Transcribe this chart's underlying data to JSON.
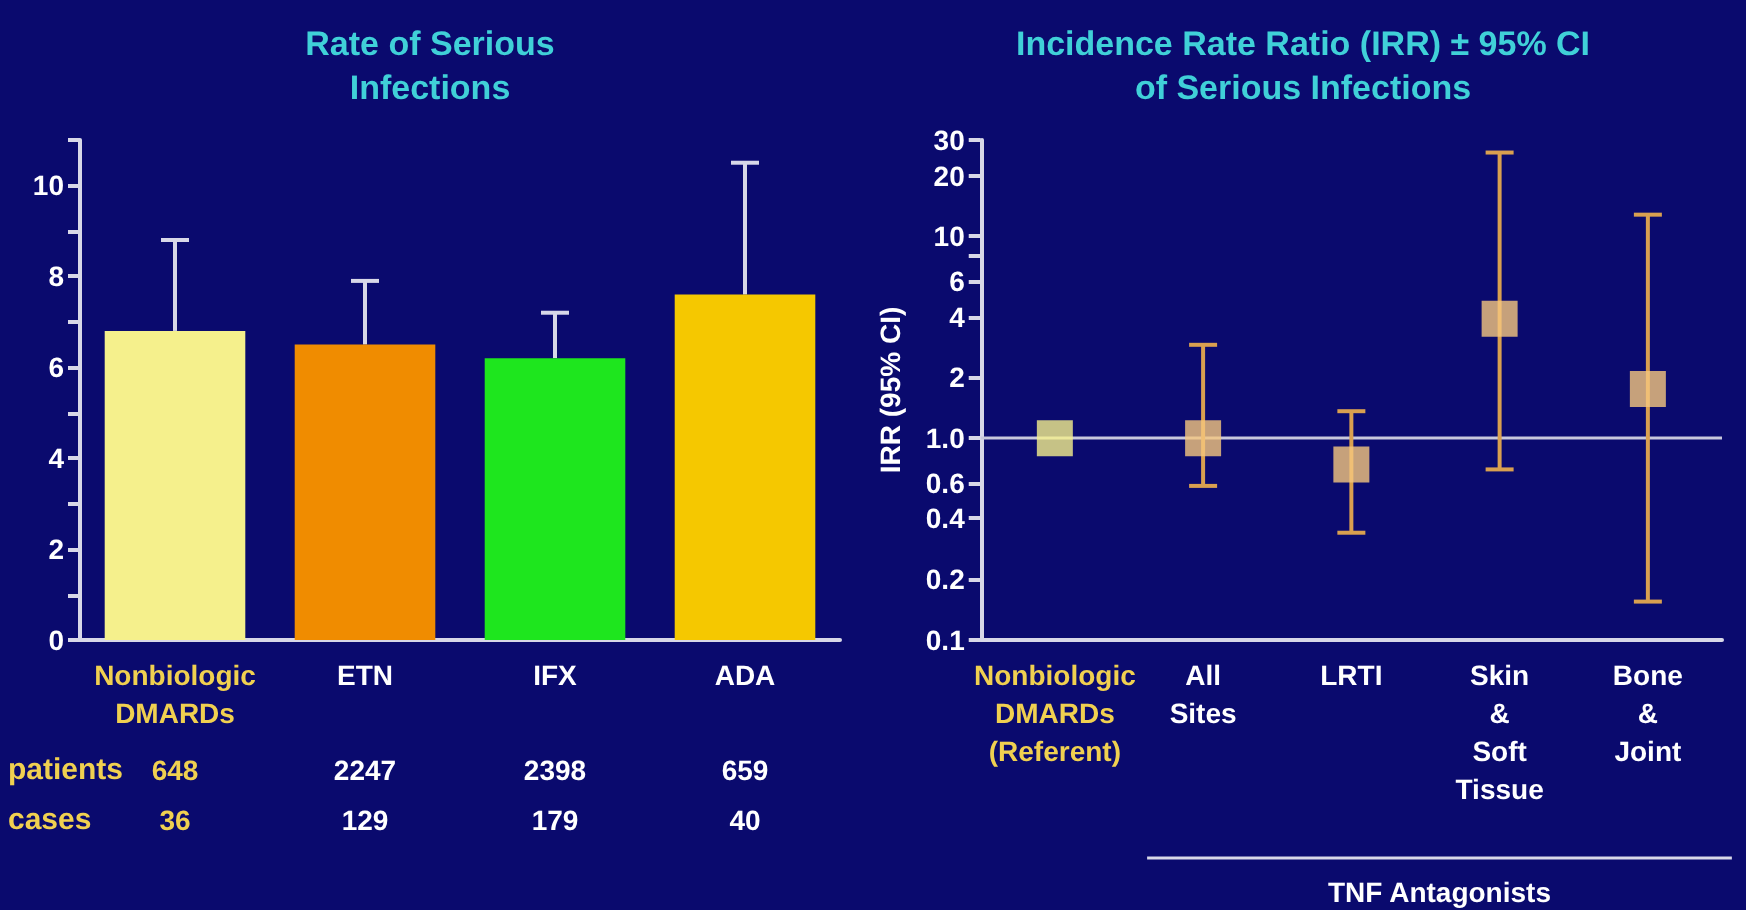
{
  "chart_data": [
    {
      "type": "bar",
      "title": "Rate of Serious\nInfections",
      "categories": [
        "Nonbiologic\nDMARDs",
        "ETN",
        "IFX",
        "ADA"
      ],
      "values": [
        6.8,
        6.5,
        6.2,
        7.6
      ],
      "colors": [
        "#f5f08c",
        "#f08c00",
        "#1ee61e",
        "#f5c800"
      ],
      "errors": [
        [
          6.8,
          8.8
        ],
        [
          6.5,
          7.9
        ],
        [
          6.2,
          7.2
        ],
        [
          7.6,
          10.5
        ]
      ],
      "ylim": [
        0,
        11
      ],
      "yticks": [
        0,
        {
          "value": 1,
          "label": null
        },
        2,
        {
          "value": 3,
          "label": null
        },
        4,
        {
          "value": 5,
          "label": null
        },
        6,
        {
          "value": 7,
          "label": null
        },
        8,
        {
          "value": 9,
          "label": null
        },
        10,
        {
          "value": 11,
          "label": null
        }
      ],
      "grid": false,
      "annotations": [
        "patients",
        "648",
        "2247",
        "2398",
        "659",
        "cases",
        "36",
        "129",
        "179",
        "40"
      ]
    },
    {
      "type": "scatter",
      "title": "Incidence Rate Ratio (IRR) ± 95% CI\nof Serious Infections",
      "ylabel": "IRR (95% CI)",
      "categories": [
        "Nonbiologic\nDMARDs\n(Referent)",
        "All\nSites",
        "LRTI",
        "Skin\n&\nSoft\nTissue",
        "Bone\n&\nJoint"
      ],
      "values": [
        1.0,
        1.0,
        0.74,
        3.9,
        1.75
      ],
      "colors": [
        "#f5f08c",
        "#f5c77e",
        "#f5c77e",
        "#f5c77e",
        "#f5c77e"
      ],
      "errors": [
        null,
        [
          0.58,
          2.9
        ],
        [
          0.34,
          1.36
        ],
        [
          0.7,
          26
        ],
        [
          0.155,
          12.8
        ]
      ],
      "log": "y",
      "ylim": [
        0.1,
        30
      ],
      "yticks": [
        0.1,
        0.2,
        0.4,
        0.6,
        {
          "value": 1,
          "label": "1.0"
        },
        2,
        4,
        6,
        {
          "value": 8,
          "label": null
        },
        10,
        20,
        30
      ],
      "marker": "square",
      "grid": false,
      "ref_lines": [
        {
          "axis": "y",
          "value": 1,
          "color": "#c8c8dc"
        }
      ],
      "annotations": [
        "TNF Antagonists"
      ]
    }
  ]
}
